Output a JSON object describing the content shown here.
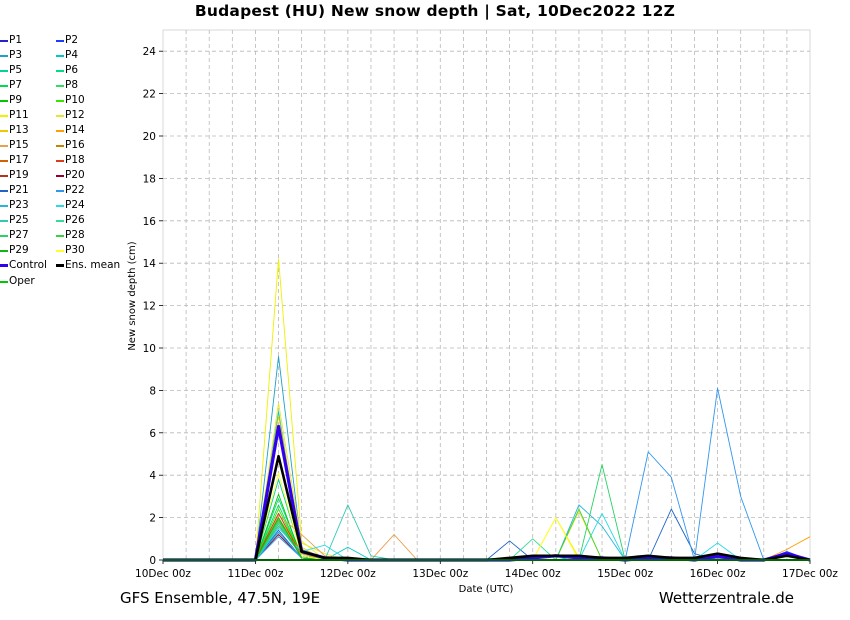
{
  "title": "Budapest  (HU)  New snow depth | Sat, 10Dec2022 12Z",
  "footer": {
    "left": "GFS Ensemble, 47.5N, 19E",
    "right": "Wetterzentrale.de"
  },
  "colors": {
    "grid": "#b8b8b8",
    "axis": "#000000",
    "background": "#ffffff"
  },
  "chart_data": {
    "type": "line",
    "title": "Budapest  (HU)  New snow depth | Sat, 10Dec2022 12Z",
    "xlabel": "Date (UTC)",
    "ylabel": "New snow depth (cm)",
    "ylim": [
      0,
      25
    ],
    "yticks": [
      0,
      2,
      4,
      6,
      8,
      10,
      12,
      14,
      16,
      18,
      20,
      22,
      24
    ],
    "x_start": "10Dec 00z",
    "x_step_hours": 6,
    "xlim_hours": [
      0,
      168
    ],
    "xticks": [
      {
        "label": "10Dec 00z",
        "hour": 0
      },
      {
        "label": "11Dec 00z",
        "hour": 24
      },
      {
        "label": "12Dec 00z",
        "hour": 48
      },
      {
        "label": "13Dec 00z",
        "hour": 72
      },
      {
        "label": "14Dec 00z",
        "hour": 96
      },
      {
        "label": "15Dec 00z",
        "hour": 120
      },
      {
        "label": "16Dec 00z",
        "hour": 144
      },
      {
        "label": "17Dec 00z",
        "hour": 168
      }
    ],
    "grid": true,
    "legend_position": "left-outside",
    "series": [
      {
        "name": "P1",
        "color": "#2323c8",
        "values": [
          0,
          0,
          0,
          0,
          0,
          1.3,
          0.1,
          0,
          0,
          0,
          0,
          0,
          0,
          0,
          0,
          0,
          0,
          0,
          0,
          0.1,
          0,
          0,
          0,
          0,
          0.1,
          0,
          0,
          0,
          0
        ]
      },
      {
        "name": "P2",
        "color": "#1e3cff",
        "values": [
          0,
          0,
          0,
          0,
          0,
          6.2,
          0.2,
          0,
          0,
          0,
          0,
          0,
          0,
          0,
          0,
          0,
          0,
          0,
          0,
          0,
          0,
          0,
          0,
          0,
          0,
          0,
          0,
          0.4,
          0
        ]
      },
      {
        "name": "P3",
        "color": "#1ea0c8",
        "values": [
          0,
          0,
          0,
          0,
          0,
          9.6,
          0.5,
          0.1,
          0,
          0,
          0,
          0,
          0,
          0,
          0,
          0,
          0,
          0,
          0,
          0,
          0,
          0,
          0,
          0,
          0,
          0,
          0,
          0,
          0
        ]
      },
      {
        "name": "P4",
        "color": "#00c8c8",
        "values": [
          0,
          0,
          0,
          0,
          0,
          7.0,
          0.3,
          0,
          0.6,
          0,
          0,
          0,
          0,
          0,
          0,
          0,
          0,
          0,
          0.2,
          0,
          0,
          0,
          0,
          0,
          0,
          0,
          0,
          0,
          0
        ]
      },
      {
        "name": "P5",
        "color": "#00d2a0",
        "values": [
          0,
          0,
          0,
          0,
          0,
          3.8,
          0.3,
          0,
          0,
          0,
          0,
          0,
          0,
          0,
          0,
          0,
          0,
          0,
          0,
          0,
          0,
          0,
          0,
          0,
          0,
          0,
          0,
          0,
          0
        ]
      },
      {
        "name": "P6",
        "color": "#00dc82",
        "values": [
          0,
          0,
          0,
          0,
          0,
          2.9,
          0.2,
          0,
          0,
          0,
          0,
          0,
          0,
          0,
          0,
          0,
          0,
          0,
          0,
          0,
          0,
          0,
          0,
          0,
          0,
          0,
          0,
          0,
          0
        ]
      },
      {
        "name": "P7",
        "color": "#00dc50",
        "values": [
          0,
          0,
          0,
          0,
          0,
          2.6,
          0.2,
          0,
          0,
          0,
          0,
          0,
          0,
          0,
          0,
          0,
          0,
          0,
          0,
          0,
          0,
          0,
          0,
          0,
          0,
          0,
          0,
          0,
          0
        ]
      },
      {
        "name": "P8",
        "color": "#32dc64",
        "values": [
          0,
          0,
          0,
          0,
          0,
          2.2,
          0.2,
          0,
          0,
          0,
          0,
          0,
          0,
          0,
          0,
          0,
          0,
          0,
          0,
          0,
          0,
          0,
          0,
          0,
          0,
          0,
          0,
          0,
          0
        ]
      },
      {
        "name": "P9",
        "color": "#00c800",
        "values": [
          0,
          0,
          0,
          0,
          0,
          3.1,
          0.1,
          0,
          0,
          0,
          0,
          0,
          0,
          0,
          0,
          0,
          0,
          0,
          0,
          0,
          0,
          0,
          0,
          0,
          0,
          0,
          0,
          0,
          0
        ]
      },
      {
        "name": "P10",
        "color": "#32e600",
        "values": [
          0,
          0,
          0,
          0,
          0,
          2.4,
          0.2,
          0,
          0,
          0,
          0,
          0,
          0,
          0,
          0,
          0,
          0,
          0,
          0,
          0,
          0,
          0,
          0,
          0,
          0,
          0,
          0,
          0,
          0
        ]
      },
      {
        "name": "P11",
        "color": "#f0f000",
        "values": [
          0,
          0,
          0,
          0,
          0,
          14.2,
          0.9,
          0,
          0,
          0,
          0,
          0,
          0,
          0,
          0,
          0,
          0,
          2.0,
          0.1,
          0,
          0,
          0,
          0,
          0,
          0,
          0,
          0,
          0,
          0
        ]
      },
      {
        "name": "P12",
        "color": "#e6e632",
        "values": [
          0,
          0,
          0,
          0,
          0,
          7.4,
          0.8,
          0.3,
          0,
          0,
          0,
          0,
          0,
          0,
          0,
          0,
          0,
          0,
          2.3,
          0,
          0,
          0,
          0,
          0,
          0,
          0,
          0,
          0,
          0
        ]
      },
      {
        "name": "P13",
        "color": "#f0c800",
        "values": [
          0,
          0,
          0,
          0,
          0,
          6.8,
          0.6,
          0,
          0,
          0,
          0,
          0,
          0,
          0,
          0,
          0,
          0,
          0,
          0,
          0,
          0,
          0,
          0,
          0,
          0,
          0,
          0,
          0,
          0
        ]
      },
      {
        "name": "P14",
        "color": "#ffa000",
        "values": [
          0,
          0,
          0,
          0,
          0,
          2.0,
          0.3,
          0,
          0,
          0,
          0,
          0,
          0,
          0,
          0,
          0,
          0,
          0,
          0,
          0,
          0,
          0,
          0,
          0,
          0,
          0,
          0,
          0.5,
          1.1
        ]
      },
      {
        "name": "P15",
        "color": "#e6a050",
        "values": [
          0,
          0,
          0,
          0,
          0,
          2.1,
          1.2,
          0.2,
          0,
          0,
          1.2,
          0,
          0,
          0,
          0,
          0,
          0,
          0,
          0,
          0,
          0,
          0,
          0,
          0,
          0,
          0,
          0,
          0,
          0
        ]
      },
      {
        "name": "P16",
        "color": "#c88200",
        "values": [
          0,
          0,
          0,
          0,
          0,
          1.6,
          0.5,
          0,
          0,
          0,
          0,
          0,
          0,
          0,
          0,
          0,
          0,
          0,
          0,
          0,
          0,
          0,
          0,
          0,
          0,
          0,
          0,
          0,
          0
        ]
      },
      {
        "name": "P17",
        "color": "#d26400",
        "values": [
          0,
          0,
          0,
          0,
          0,
          1.8,
          0.2,
          0,
          0,
          0,
          0,
          0,
          0,
          0,
          0,
          0,
          0,
          0,
          0,
          0,
          0,
          0,
          0,
          0,
          0,
          0,
          0,
          0,
          0
        ]
      },
      {
        "name": "P18",
        "color": "#dc3c1e",
        "values": [
          0,
          0,
          0,
          0,
          0,
          2.2,
          0.2,
          0,
          0,
          0,
          0,
          0,
          0,
          0,
          0,
          0,
          0,
          0,
          0,
          0,
          0,
          0,
          0,
          0,
          0,
          0,
          0,
          0,
          0
        ]
      },
      {
        "name": "P19",
        "color": "#b4321e",
        "values": [
          0,
          0,
          0,
          0,
          0,
          1.9,
          0.1,
          0,
          0,
          0,
          0,
          0,
          0,
          0,
          0,
          0,
          0,
          0,
          0,
          0,
          0,
          0,
          0,
          0,
          0,
          0,
          0,
          0,
          0
        ]
      },
      {
        "name": "P20",
        "color": "#960028",
        "values": [
          0,
          0,
          0,
          0,
          0,
          1.2,
          0.1,
          0,
          0,
          0,
          0,
          0,
          0,
          0,
          0,
          0,
          0,
          0,
          0,
          0,
          0,
          0,
          0,
          0,
          0,
          0,
          0,
          0,
          0
        ]
      },
      {
        "name": "P21",
        "color": "#1e64c8",
        "values": [
          0,
          0,
          0,
          0,
          0,
          1.4,
          0.1,
          0,
          0,
          0,
          0,
          0,
          0,
          0,
          0,
          0.9,
          0,
          0,
          0,
          0,
          0,
          0,
          2.4,
          0.3,
          0,
          0,
          0,
          0,
          0
        ]
      },
      {
        "name": "P22",
        "color": "#3296f0",
        "values": [
          0,
          0,
          0,
          0,
          0,
          1.1,
          0.1,
          0,
          0,
          0,
          0,
          0,
          0,
          0,
          0,
          0,
          0,
          0,
          0,
          0,
          0,
          5.1,
          3.9,
          0,
          8.1,
          3.0,
          0,
          0,
          0
        ]
      },
      {
        "name": "P23",
        "color": "#28b4dc",
        "values": [
          0,
          0,
          0,
          0,
          0,
          1.3,
          0.1,
          0,
          0,
          0,
          0,
          0,
          0,
          0,
          0,
          0,
          0,
          0,
          2.6,
          1.6,
          0,
          0,
          0,
          0,
          0,
          0,
          0,
          0,
          0
        ]
      },
      {
        "name": "P24",
        "color": "#28dce6",
        "values": [
          0,
          0,
          0,
          0,
          0,
          1.5,
          0.4,
          0.7,
          0,
          0,
          0,
          0,
          0,
          0,
          0,
          0,
          0,
          0,
          0,
          2.2,
          0,
          0,
          0,
          0,
          0.8,
          0,
          0,
          0,
          0
        ]
      },
      {
        "name": "P25",
        "color": "#32c8b4",
        "values": [
          0,
          0,
          0,
          0,
          0,
          1.6,
          0.2,
          0,
          2.6,
          0.2,
          0,
          0,
          0,
          0,
          0,
          0,
          0,
          0,
          0,
          0,
          0,
          0,
          0,
          0,
          0,
          0,
          0,
          0,
          0
        ]
      },
      {
        "name": "P26",
        "color": "#32dc96",
        "values": [
          0,
          0,
          0,
          0,
          0,
          1.8,
          0.2,
          0,
          0,
          0,
          0,
          0,
          0,
          0,
          0,
          0,
          1.0,
          0,
          0,
          0,
          0,
          0,
          0,
          0,
          0,
          0,
          0,
          0,
          0
        ]
      },
      {
        "name": "P27",
        "color": "#28d264",
        "values": [
          0,
          0,
          0,
          0,
          0,
          1.7,
          0.2,
          0,
          0,
          0,
          0,
          0,
          0,
          0,
          0,
          0,
          0,
          0,
          0,
          4.5,
          0,
          0,
          0,
          0,
          0,
          0,
          0,
          0,
          0
        ]
      },
      {
        "name": "P28",
        "color": "#3cd23c",
        "values": [
          0,
          0,
          0,
          0,
          0,
          1.9,
          0.2,
          0,
          0,
          0,
          0,
          0,
          0,
          0,
          0,
          0,
          0,
          0,
          2.4,
          0,
          0,
          0,
          0,
          0,
          0,
          0,
          0,
          0,
          0
        ]
      },
      {
        "name": "P29",
        "color": "#14b414",
        "values": [
          0,
          0,
          0,
          0,
          0,
          2.0,
          0.1,
          0,
          0,
          0,
          0,
          0,
          0,
          0,
          0,
          0,
          0,
          0,
          0,
          0,
          0,
          0,
          0,
          0,
          0,
          0,
          0,
          0,
          0
        ]
      },
      {
        "name": "P30",
        "color": "#ffff28",
        "values": [
          0,
          0,
          0,
          0,
          0,
          4.1,
          0.2,
          0,
          0,
          0,
          0,
          0,
          0,
          0,
          0,
          0,
          0,
          2.0,
          0,
          0,
          0,
          0,
          0,
          0,
          0,
          0,
          0,
          0,
          0
        ]
      },
      {
        "name": "Control",
        "color": "#3200f0",
        "width": 3.2,
        "values": [
          0,
          0,
          0,
          0,
          0,
          6.3,
          0.4,
          0.1,
          0,
          0,
          0,
          0,
          0,
          0,
          0,
          0,
          0.1,
          0.2,
          0.1,
          0.1,
          0,
          0.1,
          0.1,
          0,
          0.2,
          0,
          0,
          0.3,
          0
        ]
      },
      {
        "name": "Ens. mean",
        "color": "#000000",
        "width": 2.6,
        "values": [
          0,
          0,
          0,
          0,
          0,
          4.9,
          0.4,
          0.1,
          0.1,
          0,
          0,
          0,
          0,
          0,
          0,
          0.1,
          0.2,
          0.2,
          0.2,
          0.1,
          0.1,
          0.2,
          0.1,
          0.1,
          0.3,
          0.1,
          0,
          0.2,
          0
        ]
      },
      {
        "name": "Oper",
        "color": "#00c800",
        "width": 2,
        "values": [
          0,
          0,
          0,
          0,
          0,
          0,
          0,
          0,
          0,
          0,
          0,
          0,
          0,
          0,
          0,
          0,
          0,
          0,
          0,
          0,
          0,
          0,
          0,
          0,
          0,
          0,
          0,
          0,
          0
        ]
      }
    ]
  }
}
